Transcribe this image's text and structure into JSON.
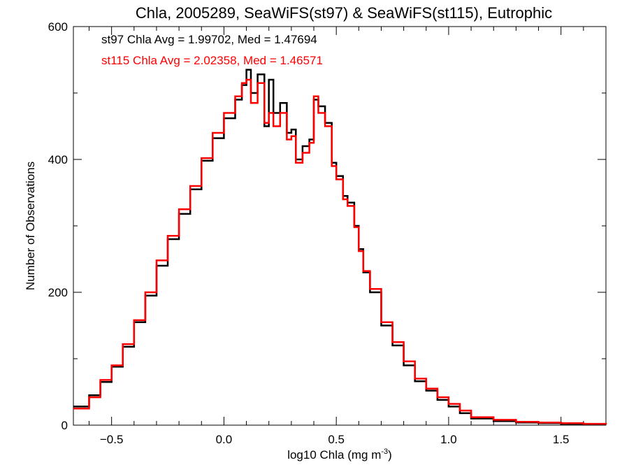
{
  "chart_data": {
    "type": "line",
    "step": true,
    "title": "Chla, 2005289, SeaWiFS(st97) & SeaWiFS(st115), Eutrophic",
    "xlabel": "log10 Chla (mg m",
    "xlabel_sup": "-3",
    "xlabel_close": ")",
    "ylabel": "Number of Observations",
    "xlim": [
      -0.67,
      1.7
    ],
    "ylim": [
      0,
      600
    ],
    "xticks": [
      -0.5,
      0.0,
      0.5,
      1.0,
      1.5
    ],
    "xtick_labels": [
      "−0.5",
      "0.0",
      "0.5",
      "1.0",
      "1.5"
    ],
    "yticks": [
      0,
      200,
      400,
      600
    ],
    "ytick_labels": [
      "0",
      "200",
      "400",
      "600"
    ],
    "x_minor_step": 0.1,
    "y_minor_step": 100,
    "grid": false,
    "legend_position": "top-left",
    "legend": [
      {
        "text": "st97 Chla Avg = 1.99702, Med = 1.47694",
        "color": "#000000"
      },
      {
        "text": "st115 Chla Avg = 2.02358, Med = 1.46571",
        "color": "#ff0000"
      }
    ],
    "series": [
      {
        "color": "#000000",
        "x": [
          -0.67,
          -0.6,
          -0.55,
          -0.5,
          -0.45,
          -0.4,
          -0.35,
          -0.3,
          -0.25,
          -0.2,
          -0.15,
          -0.1,
          -0.05,
          0.0,
          0.05,
          0.08,
          0.1,
          0.12,
          0.15,
          0.18,
          0.2,
          0.22,
          0.25,
          0.28,
          0.3,
          0.32,
          0.35,
          0.38,
          0.4,
          0.42,
          0.45,
          0.48,
          0.5,
          0.53,
          0.55,
          0.58,
          0.6,
          0.62,
          0.65,
          0.7,
          0.75,
          0.8,
          0.85,
          0.9,
          0.95,
          1.0,
          1.05,
          1.1,
          1.2,
          1.3,
          1.4,
          1.5,
          1.6,
          1.7
        ],
        "y": [
          28,
          45,
          65,
          88,
          118,
          155,
          195,
          240,
          280,
          318,
          355,
          398,
          432,
          462,
          490,
          512,
          535,
          500,
          528,
          450,
          520,
          470,
          485,
          440,
          445,
          400,
          420,
          430,
          490,
          480,
          455,
          395,
          375,
          345,
          335,
          300,
          265,
          230,
          200,
          150,
          120,
          90,
          66,
          52,
          38,
          28,
          18,
          10,
          6,
          4,
          3,
          2,
          1,
          1
        ]
      },
      {
        "color": "#ff0000",
        "x": [
          -0.67,
          -0.6,
          -0.55,
          -0.5,
          -0.45,
          -0.4,
          -0.35,
          -0.3,
          -0.25,
          -0.2,
          -0.15,
          -0.1,
          -0.05,
          0.0,
          0.05,
          0.08,
          0.1,
          0.12,
          0.15,
          0.18,
          0.2,
          0.22,
          0.25,
          0.28,
          0.3,
          0.32,
          0.35,
          0.38,
          0.4,
          0.42,
          0.45,
          0.48,
          0.5,
          0.53,
          0.55,
          0.58,
          0.6,
          0.62,
          0.65,
          0.7,
          0.75,
          0.8,
          0.85,
          0.9,
          0.95,
          1.0,
          1.05,
          1.1,
          1.2,
          1.3,
          1.4,
          1.5,
          1.6,
          1.7
        ],
        "y": [
          25,
          42,
          68,
          90,
          122,
          158,
          200,
          248,
          285,
          325,
          360,
          402,
          440,
          470,
          495,
          515,
          520,
          485,
          515,
          455,
          470,
          450,
          470,
          430,
          435,
          395,
          410,
          425,
          495,
          470,
          450,
          390,
          370,
          340,
          330,
          298,
          262,
          232,
          205,
          155,
          125,
          96,
          70,
          55,
          42,
          32,
          22,
          12,
          8,
          5,
          4,
          3,
          2,
          1
        ]
      }
    ]
  }
}
